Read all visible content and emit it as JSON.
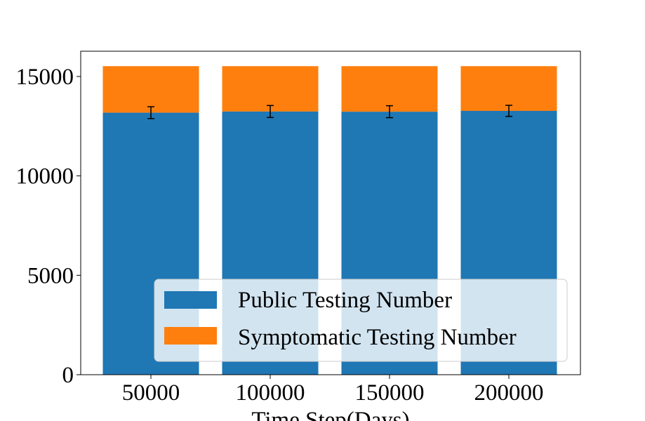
{
  "chart_data": {
    "type": "bar",
    "stacked": true,
    "categories": [
      "50000",
      "100000",
      "150000",
      "200000"
    ],
    "series": [
      {
        "name": "Public Testing Number",
        "color": "#1f77b4",
        "values": [
          13180,
          13240,
          13230,
          13270
        ]
      },
      {
        "name": "Symptomatic Testing Number",
        "color": "#ff7f0e",
        "values": [
          2340,
          2280,
          2290,
          2250
        ]
      }
    ],
    "error_bars": {
      "series": "Public Testing Number",
      "centers": [
        13180,
        13240,
        13230,
        13270
      ],
      "errors": [
        300,
        300,
        300,
        280
      ]
    },
    "xlabel": "Time Step(Days)",
    "ylabel": "",
    "ylim": [
      0,
      16000
    ],
    "yticks": [
      0,
      5000,
      10000,
      15000
    ],
    "legend": "lower-right",
    "grid": false
  }
}
